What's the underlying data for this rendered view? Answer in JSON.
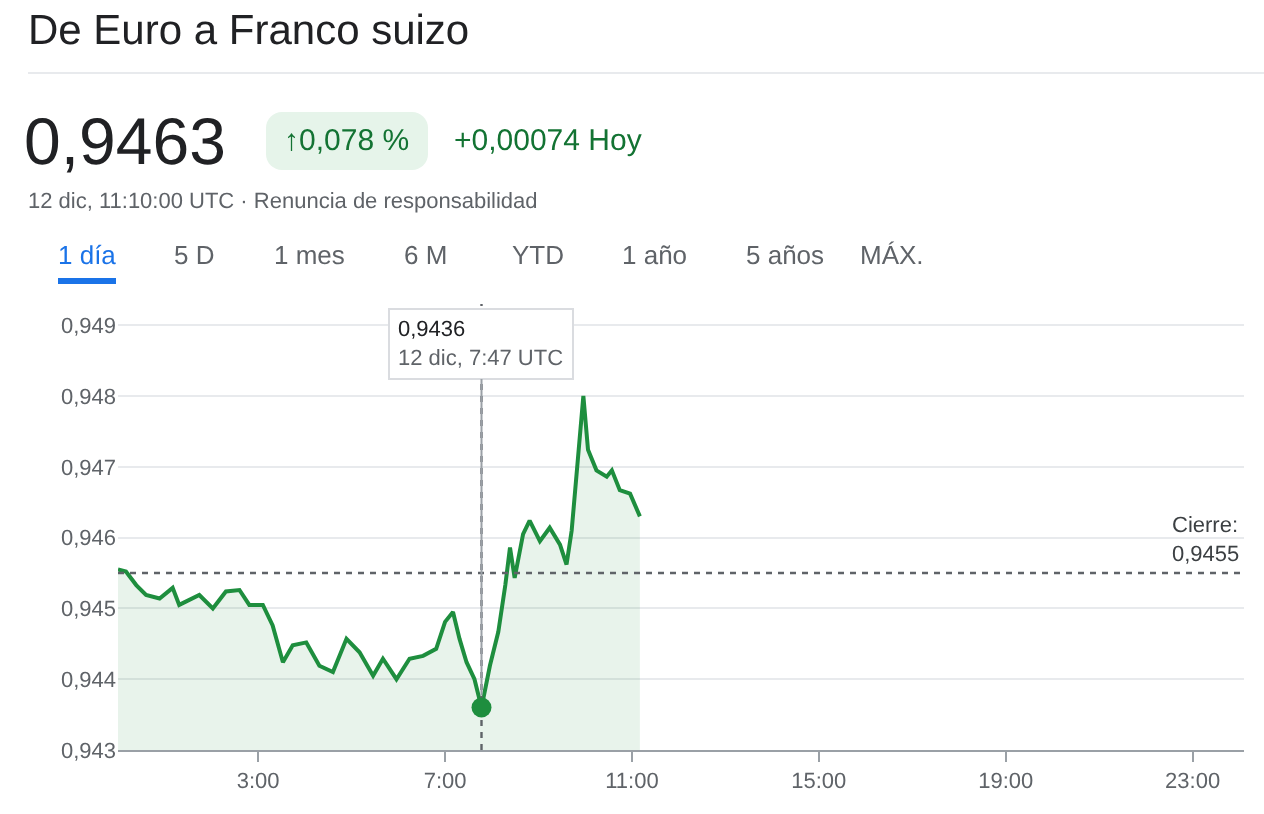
{
  "chart_data": {
    "type": "area",
    "title": "De Euro a Franco suizo",
    "subtitle": "0,9463",
    "annotations": [
      "↑0,078 %",
      "+0,00074 Hoy",
      "12 dic, 11:10:00 UTC · Renuncia de responsabilidad",
      "1 día",
      "5 D",
      "1 mes",
      "6 M",
      "YTD",
      "1 año",
      "5 años",
      "MÁX.",
      {
        "text": "0,9436\n12 dic, 7:47 UTC",
        "x": 7.78,
        "y": 0.9436
      }
    ],
    "x": [
      0,
      0.17,
      0.39,
      0.6,
      0.89,
      1.17,
      1.31,
      1.74,
      2.03,
      2.31,
      2.6,
      2.81,
      3.1,
      3.31,
      3.53,
      3.74,
      4.03,
      4.31,
      4.6,
      4.89,
      5.17,
      5.46,
      5.67,
      5.96,
      6.24,
      6.53,
      6.81,
      7.0,
      7.17,
      7.31,
      7.46,
      7.63,
      7.78,
      7.96,
      8.14,
      8.29,
      8.39,
      8.49,
      8.67,
      8.81,
      9.03,
      9.24,
      9.46,
      9.6,
      9.71,
      9.86,
      9.96,
      10.06,
      10.24,
      10.46,
      10.57,
      10.74,
      10.96,
      11.17
    ],
    "series": [
      {
        "color": "#1e8e3e",
        "values": [
          0.94555,
          0.94552,
          0.94533,
          0.94519,
          0.94514,
          0.94529,
          0.94505,
          0.94519,
          0.945,
          0.94524,
          0.94526,
          0.94505,
          0.94505,
          0.94476,
          0.94424,
          0.94448,
          0.94452,
          0.94419,
          0.9441,
          0.94457,
          0.94438,
          0.94405,
          0.94429,
          0.944,
          0.94429,
          0.94433,
          0.94443,
          0.94481,
          0.94495,
          0.94457,
          0.94424,
          0.944,
          0.9436,
          0.94419,
          0.94467,
          0.94533,
          0.94586,
          0.94543,
          0.94605,
          0.94624,
          0.94595,
          0.94614,
          0.9459,
          0.94562,
          0.9461,
          0.94724,
          0.948,
          0.94724,
          0.94695,
          0.94686,
          0.94695,
          0.94667,
          0.94662,
          0.9463
        ]
      }
    ],
    "xlim": [
      0,
      24.1
    ],
    "ylim": [
      0.943,
      0.9493
    ],
    "xticks": [
      {
        "value": 3,
        "label": "3:00"
      },
      {
        "value": 7,
        "label": "7:00"
      },
      {
        "value": 11,
        "label": "11:00"
      },
      {
        "value": 15,
        "label": "15:00"
      },
      {
        "value": 19,
        "label": "19:00"
      },
      {
        "value": 23,
        "label": "23:00"
      }
    ],
    "yticks": [
      {
        "value": 0.943,
        "label": "0,943"
      },
      {
        "value": 0.944,
        "label": "0,944"
      },
      {
        "value": 0.945,
        "label": "0,945"
      },
      {
        "value": 0.946,
        "label": "0,946"
      },
      {
        "value": 0.947,
        "label": "0,947"
      },
      {
        "value": 0.948,
        "label": "0,948"
      },
      {
        "value": 0.949,
        "label": "0,949"
      }
    ],
    "ref_lines": [
      {
        "axis": "y",
        "value": 0.9455,
        "label": "Cierre:\n0,9455",
        "line_style": "dotted",
        "color": "#5f6368"
      },
      {
        "axis": "x",
        "value": 7.78,
        "line_style": "dotted",
        "color": "#5f6368"
      }
    ],
    "grid": "y",
    "marker": "none",
    "line_style": "solid"
  }
}
